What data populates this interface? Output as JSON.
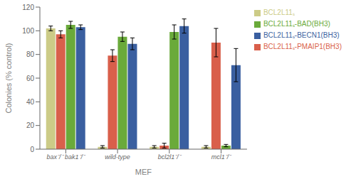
{
  "chart_data": {
    "type": "bar",
    "categories": [
      "bax⁻/⁻ bak1⁻/⁻",
      "wild-type",
      "bcl2l1⁻/⁻",
      "mcl1⁻/⁻"
    ],
    "series": [
      {
        "name": "BCL2L11ₛ",
        "color": "#cccb87",
        "values": [
          102,
          2,
          2,
          2
        ],
        "errors": [
          2,
          1,
          1,
          1
        ]
      },
      {
        "name": "BCL2L11ₛ-PMAIP1(BH3)",
        "color": "#d95f4b",
        "values": [
          97,
          79,
          3,
          90
        ],
        "errors": [
          3,
          5,
          2,
          12
        ]
      },
      {
        "name": "BCL2L11ₛ-BAD(BH3)",
        "color": "#6aaa3a",
        "values": [
          105,
          95,
          99,
          3
        ],
        "errors": [
          3,
          4,
          6,
          1
        ]
      },
      {
        "name": "BCL2L11ₛ-BECN1(BH3)",
        "color": "#3a5fa0",
        "values": [
          103,
          89,
          104,
          71
        ],
        "errors": [
          2,
          5,
          6,
          14
        ]
      }
    ],
    "xlabel": "MEF",
    "ylabel": "Colonies (% control)",
    "ylim": [
      0,
      120
    ],
    "yticks": [
      0,
      20,
      40,
      60,
      80,
      100,
      120
    ],
    "grid": false,
    "legend": "right"
  }
}
